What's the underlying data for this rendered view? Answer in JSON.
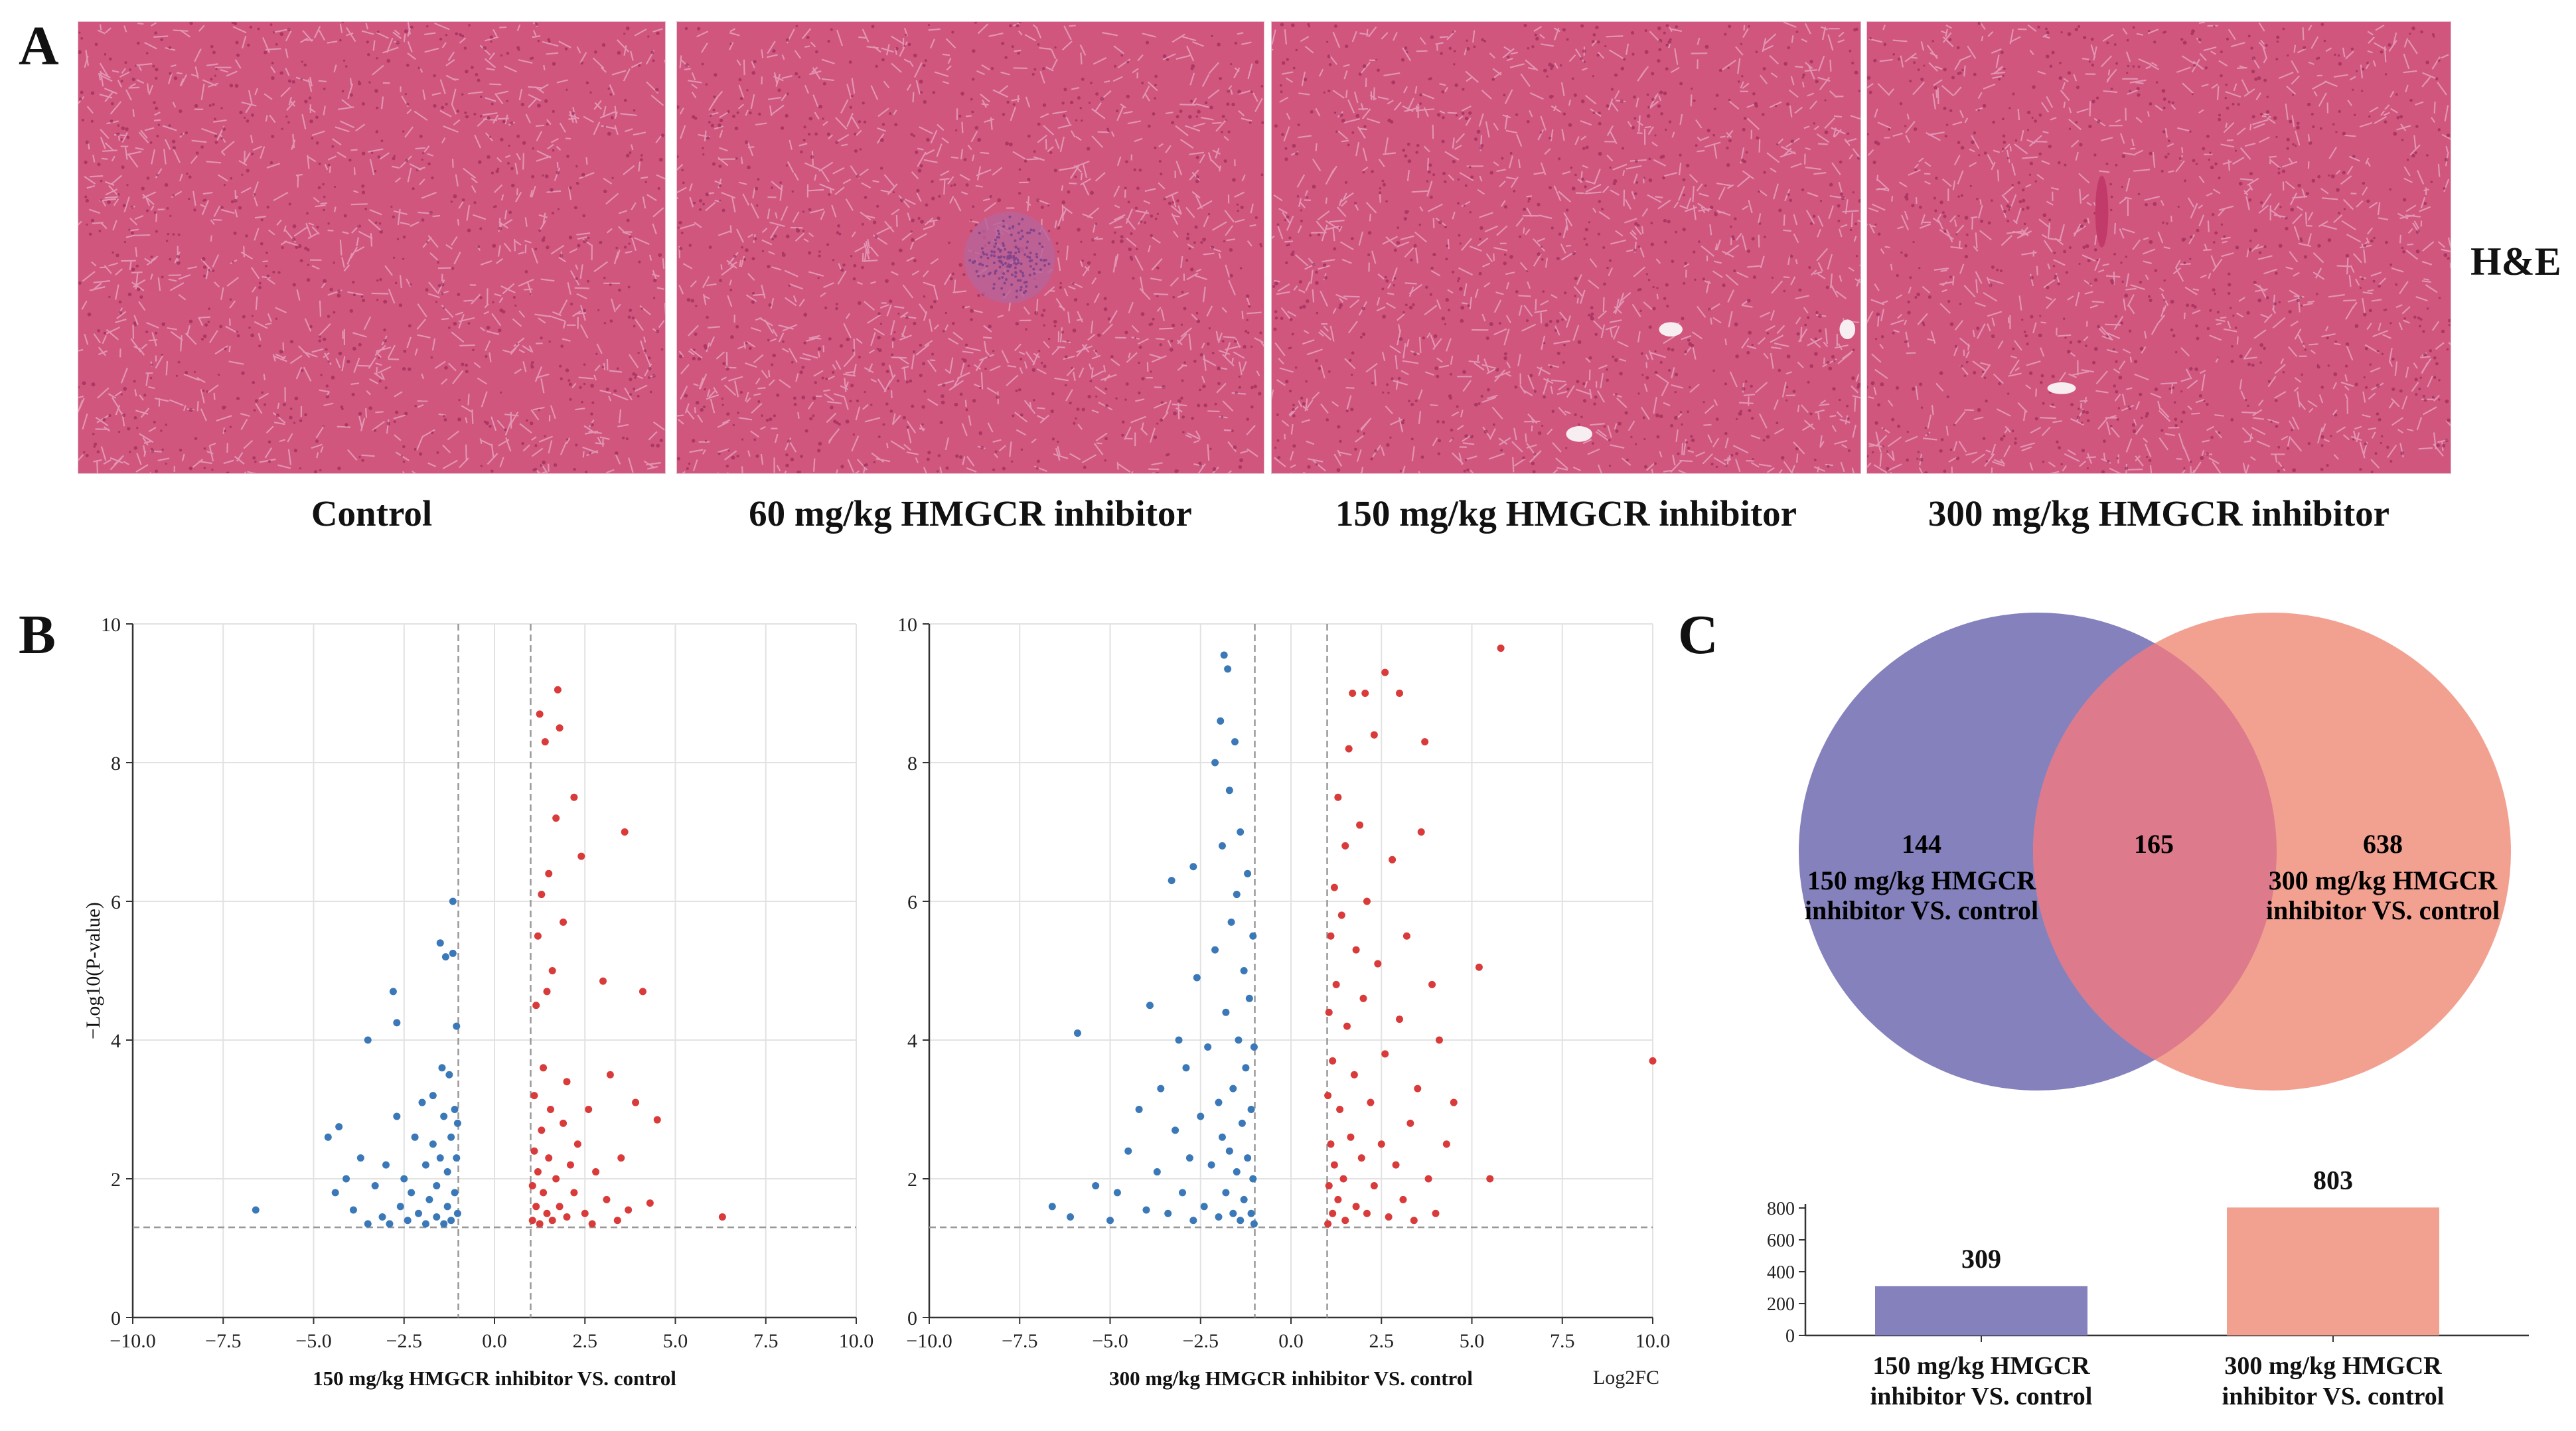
{
  "panel_labels": {
    "a": "A",
    "b": "B",
    "c": "C"
  },
  "panel_a": {
    "stain_label": "H&E",
    "images": [
      {
        "caption": "Control",
        "feature": "none"
      },
      {
        "caption": "60 mg/kg HMGCR inhibitor",
        "feature": "inflammatory-focus"
      },
      {
        "caption": "150 mg/kg HMGCR inhibitor",
        "feature": "small-vessels"
      },
      {
        "caption": "300 mg/kg HMGCR inhibitor",
        "feature": "vessel"
      }
    ],
    "tissue_colors": {
      "background": "#d0567e",
      "light": "#e6a0bc",
      "dark": "#8f1f4e"
    }
  },
  "chart_data": [
    {
      "type": "scatter",
      "panel": "B-left",
      "xlabel": "150 mg/kg HMGCR inhibitor VS. control",
      "ylabel": "−Log10(P-value)",
      "xlim": [
        -10,
        10
      ],
      "ylim": [
        0,
        10
      ],
      "x_ticks": [
        "−10.0",
        "−7.5",
        "−5.0",
        "−2.5",
        "0.0",
        "2.5",
        "5.0",
        "7.5",
        "10.0"
      ],
      "y_ticks": [
        "0",
        "2",
        "4",
        "6",
        "8",
        "10"
      ],
      "thresholds": {
        "log2fc": [
          -1,
          1
        ],
        "neg_log10_p": 1.3
      },
      "grid": true,
      "series": [
        {
          "color": "#3a78b8",
          "points": [
            [
              -6.6,
              1.55
            ],
            [
              -4.6,
              2.6
            ],
            [
              -4.4,
              1.8
            ],
            [
              -4.3,
              2.75
            ],
            [
              -4.1,
              2.0
            ],
            [
              -3.9,
              1.55
            ],
            [
              -3.7,
              2.3
            ],
            [
              -3.5,
              1.35
            ],
            [
              -3.5,
              4.0
            ],
            [
              -3.3,
              1.9
            ],
            [
              -3.1,
              1.45
            ],
            [
              -3.0,
              2.2
            ],
            [
              -2.9,
              1.35
            ],
            [
              -2.8,
              4.7
            ],
            [
              -2.7,
              2.9
            ],
            [
              -2.7,
              4.25
            ],
            [
              -2.6,
              1.6
            ],
            [
              -2.5,
              2.0
            ],
            [
              -2.4,
              1.4
            ],
            [
              -2.3,
              1.8
            ],
            [
              -2.2,
              2.6
            ],
            [
              -2.1,
              1.5
            ],
            [
              -2.0,
              3.1
            ],
            [
              -1.9,
              1.35
            ],
            [
              -1.9,
              2.2
            ],
            [
              -1.8,
              1.7
            ],
            [
              -1.7,
              2.5
            ],
            [
              -1.7,
              3.2
            ],
            [
              -1.6,
              1.45
            ],
            [
              -1.6,
              1.9
            ],
            [
              -1.5,
              2.3
            ],
            [
              -1.5,
              5.4
            ],
            [
              -1.45,
              3.6
            ],
            [
              -1.4,
              1.35
            ],
            [
              -1.4,
              2.9
            ],
            [
              -1.35,
              5.2
            ],
            [
              -1.3,
              1.6
            ],
            [
              -1.3,
              2.1
            ],
            [
              -1.25,
              3.5
            ],
            [
              -1.2,
              1.4
            ],
            [
              -1.2,
              2.6
            ],
            [
              -1.15,
              5.25
            ],
            [
              -1.15,
              6.0
            ],
            [
              -1.1,
              1.8
            ],
            [
              -1.1,
              3.0
            ],
            [
              -1.05,
              2.3
            ],
            [
              -1.05,
              4.2
            ],
            [
              -1.02,
              1.5
            ],
            [
              -1.02,
              2.8
            ]
          ]
        },
        {
          "color": "#d93a3a",
          "points": [
            [
              1.05,
              1.4
            ],
            [
              1.05,
              1.9
            ],
            [
              1.1,
              2.4
            ],
            [
              1.1,
              3.2
            ],
            [
              1.15,
              1.6
            ],
            [
              1.15,
              4.5
            ],
            [
              1.2,
              2.1
            ],
            [
              1.2,
              5.5
            ],
            [
              1.25,
              1.35
            ],
            [
              1.25,
              8.7
            ],
            [
              1.3,
              2.7
            ],
            [
              1.3,
              6.1
            ],
            [
              1.35,
              1.8
            ],
            [
              1.35,
              3.6
            ],
            [
              1.4,
              8.3
            ],
            [
              1.45,
              1.5
            ],
            [
              1.45,
              4.7
            ],
            [
              1.5,
              2.3
            ],
            [
              1.5,
              6.4
            ],
            [
              1.55,
              3.0
            ],
            [
              1.6,
              1.4
            ],
            [
              1.6,
              5.0
            ],
            [
              1.7,
              2.0
            ],
            [
              1.7,
              7.2
            ],
            [
              1.75,
              9.05
            ],
            [
              1.8,
              1.6
            ],
            [
              1.8,
              8.5
            ],
            [
              1.9,
              2.8
            ],
            [
              1.9,
              5.7
            ],
            [
              2.0,
              1.45
            ],
            [
              2.0,
              3.4
            ],
            [
              2.1,
              2.2
            ],
            [
              2.2,
              1.8
            ],
            [
              2.2,
              7.5
            ],
            [
              2.3,
              2.5
            ],
            [
              2.4,
              6.65
            ],
            [
              2.5,
              1.5
            ],
            [
              2.6,
              3.0
            ],
            [
              2.7,
              1.35
            ],
            [
              2.8,
              2.1
            ],
            [
              3.0,
              4.85
            ],
            [
              3.1,
              1.7
            ],
            [
              3.2,
              3.5
            ],
            [
              3.4,
              1.4
            ],
            [
              3.5,
              2.3
            ],
            [
              3.6,
              7.0
            ],
            [
              3.7,
              1.55
            ],
            [
              3.9,
              3.1
            ],
            [
              4.1,
              4.7
            ],
            [
              4.3,
              1.65
            ],
            [
              4.5,
              2.85
            ],
            [
              6.3,
              1.45
            ]
          ]
        }
      ]
    },
    {
      "type": "scatter",
      "panel": "B-right",
      "xlabel": "300 mg/kg HMGCR inhibitor VS. control",
      "x_unit_label": "Log2FC",
      "xlim": [
        -10,
        10
      ],
      "ylim": [
        0,
        10
      ],
      "x_ticks": [
        "−10.0",
        "−7.5",
        "−5.0",
        "−2.5",
        "0.0",
        "2.5",
        "5.0",
        "7.5",
        "10.0"
      ],
      "y_ticks": [
        "0",
        "2",
        "4",
        "6",
        "8",
        "10"
      ],
      "thresholds": {
        "log2fc": [
          -1,
          1
        ],
        "neg_log10_p": 1.3
      },
      "grid": true,
      "series": [
        {
          "color": "#3a78b8",
          "points": [
            [
              -6.6,
              1.6
            ],
            [
              -6.1,
              1.45
            ],
            [
              -5.9,
              4.1
            ],
            [
              -5.4,
              1.9
            ],
            [
              -5.0,
              1.4
            ],
            [
              -4.8,
              1.8
            ],
            [
              -4.5,
              2.4
            ],
            [
              -4.2,
              3.0
            ],
            [
              -4.0,
              1.55
            ],
            [
              -3.9,
              4.5
            ],
            [
              -3.7,
              2.1
            ],
            [
              -3.6,
              3.3
            ],
            [
              -3.4,
              1.5
            ],
            [
              -3.3,
              6.3
            ],
            [
              -3.2,
              2.7
            ],
            [
              -3.1,
              4.0
            ],
            [
              -3.0,
              1.8
            ],
            [
              -2.9,
              3.6
            ],
            [
              -2.8,
              2.3
            ],
            [
              -2.7,
              1.4
            ],
            [
              -2.7,
              6.5
            ],
            [
              -2.6,
              4.9
            ],
            [
              -2.5,
              2.9
            ],
            [
              -2.4,
              1.6
            ],
            [
              -2.3,
              3.9
            ],
            [
              -2.2,
              2.2
            ],
            [
              -2.1,
              8.0
            ],
            [
              -2.1,
              5.3
            ],
            [
              -2.0,
              1.45
            ],
            [
              -2.0,
              3.1
            ],
            [
              -1.95,
              8.6
            ],
            [
              -1.9,
              2.6
            ],
            [
              -1.9,
              6.8
            ],
            [
              -1.85,
              9.55
            ],
            [
              -1.8,
              1.8
            ],
            [
              -1.8,
              4.4
            ],
            [
              -1.75,
              9.35
            ],
            [
              -1.7,
              2.4
            ],
            [
              -1.7,
              7.6
            ],
            [
              -1.65,
              5.7
            ],
            [
              -1.6,
              1.5
            ],
            [
              -1.6,
              3.3
            ],
            [
              -1.55,
              8.3
            ],
            [
              -1.5,
              2.1
            ],
            [
              -1.5,
              6.1
            ],
            [
              -1.45,
              4.0
            ],
            [
              -1.4,
              1.4
            ],
            [
              -1.4,
              7.0
            ],
            [
              -1.35,
              2.8
            ],
            [
              -1.3,
              5.0
            ],
            [
              -1.3,
              1.7
            ],
            [
              -1.25,
              3.6
            ],
            [
              -1.2,
              6.4
            ],
            [
              -1.2,
              2.3
            ],
            [
              -1.15,
              4.6
            ],
            [
              -1.1,
              1.5
            ],
            [
              -1.1,
              3.0
            ],
            [
              -1.05,
              5.5
            ],
            [
              -1.05,
              2.0
            ],
            [
              -1.02,
              3.9
            ],
            [
              -1.02,
              1.35
            ]
          ]
        },
        {
          "color": "#d93a3a",
          "points": [
            [
              1.02,
              1.35
            ],
            [
              1.02,
              3.2
            ],
            [
              1.05,
              1.9
            ],
            [
              1.05,
              4.4
            ],
            [
              1.1,
              2.5
            ],
            [
              1.1,
              5.5
            ],
            [
              1.15,
              1.5
            ],
            [
              1.15,
              3.7
            ],
            [
              1.2,
              6.2
            ],
            [
              1.2,
              2.2
            ],
            [
              1.25,
              4.8
            ],
            [
              1.3,
              1.7
            ],
            [
              1.3,
              7.5
            ],
            [
              1.35,
              3.0
            ],
            [
              1.4,
              5.8
            ],
            [
              1.45,
              2.0
            ],
            [
              1.5,
              6.8
            ],
            [
              1.5,
              1.4
            ],
            [
              1.55,
              4.2
            ],
            [
              1.6,
              8.2
            ],
            [
              1.65,
              2.6
            ],
            [
              1.7,
              9.0
            ],
            [
              1.75,
              3.5
            ],
            [
              1.8,
              5.3
            ],
            [
              1.8,
              1.6
            ],
            [
              1.9,
              7.1
            ],
            [
              1.95,
              2.3
            ],
            [
              2.0,
              4.6
            ],
            [
              2.05,
              9.0
            ],
            [
              2.1,
              1.5
            ],
            [
              2.1,
              6.0
            ],
            [
              2.2,
              3.1
            ],
            [
              2.3,
              8.4
            ],
            [
              2.3,
              1.9
            ],
            [
              2.4,
              5.1
            ],
            [
              2.5,
              2.5
            ],
            [
              2.6,
              9.3
            ],
            [
              2.6,
              3.8
            ],
            [
              2.7,
              1.45
            ],
            [
              2.8,
              6.6
            ],
            [
              2.9,
              2.2
            ],
            [
              3.0,
              9.0
            ],
            [
              3.0,
              4.3
            ],
            [
              3.1,
              1.7
            ],
            [
              3.2,
              5.5
            ],
            [
              3.3,
              2.8
            ],
            [
              3.4,
              1.4
            ],
            [
              3.5,
              3.3
            ],
            [
              3.6,
              7.0
            ],
            [
              3.7,
              8.3
            ],
            [
              3.8,
              2.0
            ],
            [
              3.9,
              4.8
            ],
            [
              4.0,
              1.5
            ],
            [
              4.1,
              4.0
            ],
            [
              4.3,
              2.5
            ],
            [
              4.5,
              3.1
            ],
            [
              5.2,
              5.05
            ],
            [
              5.5,
              2.0
            ],
            [
              5.8,
              9.65
            ],
            [
              10.0,
              3.7
            ]
          ]
        }
      ]
    },
    {
      "type": "bar",
      "panel": "C-bar",
      "categories": [
        "150 mg/kg HMGCR inhibitor VS. control",
        "300 mg/kg HMGCR inhibitor VS. control"
      ],
      "values": [
        309,
        803
      ],
      "colors": [
        "#8581bd",
        "#f2a191"
      ],
      "ylim": [
        0,
        800
      ],
      "y_ticks": [
        "0",
        "200",
        "400",
        "600",
        "800"
      ]
    }
  ],
  "venn": {
    "left": {
      "count": "144",
      "label_line1": "150 mg/kg HMGCR",
      "label_line2": "inhibitor VS. control",
      "color": "#8581bd"
    },
    "overlap": {
      "count": "165",
      "color": "#dd7a8c"
    },
    "right": {
      "count": "638",
      "label_line1": "300 mg/kg HMGCR",
      "label_line2": "inhibitor VS. control",
      "color": "#f2a191"
    }
  }
}
